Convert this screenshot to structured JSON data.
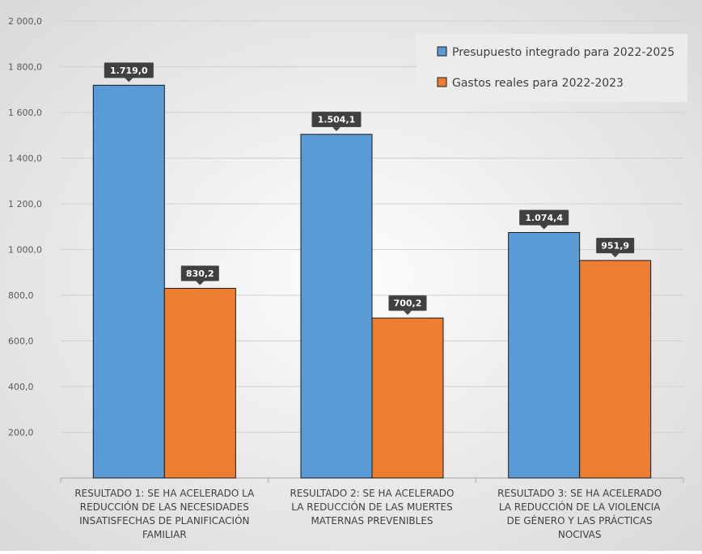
{
  "chart_data": {
    "type": "bar",
    "categories": [
      [
        "RESULTADO 1: SE HA ACELERADO LA",
        "REDUCCIÓN DE LAS NECESIDADES",
        "INSATISFECHAS DE PLANIFICACIÓN",
        "FAMILIAR"
      ],
      [
        "RESULTADO 2: SE HA ACELERADO",
        "LA REDUCCIÓN DE LAS MUERTES",
        "MATERNAS PREVENIBLES"
      ],
      [
        "RESULTADO 3: SE HA ACELERADO",
        "LA REDUCCIÓN DE LA VIOLENCIA",
        "DE GÉNERO Y LAS PRÁCTICAS",
        "NOCIVAS"
      ]
    ],
    "series": [
      {
        "name": "Presupuesto integrado para 2022-2025",
        "values": [
          1719.0,
          1504.1,
          1074.4
        ],
        "labels": [
          "1.719,0",
          "1.504,1",
          "1.074,4"
        ],
        "color": "#5b9bd5"
      },
      {
        "name": "Gastos reales para 2022-2023",
        "values": [
          830.2,
          700.2,
          951.9
        ],
        "labels": [
          "830,2",
          "700,2",
          "951,9"
        ],
        "color": "#ed7d31"
      }
    ],
    "ylim": [
      0,
      2000
    ],
    "yticks": [
      200,
      400,
      600,
      800,
      1000,
      1200,
      1400,
      1600,
      1800,
      2000
    ],
    "ytick_labels": [
      "200,0",
      "400,0",
      "600,0",
      "800,0",
      "1 000,0",
      "1 200,0",
      "1 400,0",
      "1 600,0",
      "1 800,0",
      "2 000,0"
    ],
    "grid": true,
    "legend_position": "top-right",
    "data_label_background": "#404040",
    "title": "",
    "xlabel": "",
    "ylabel": ""
  }
}
